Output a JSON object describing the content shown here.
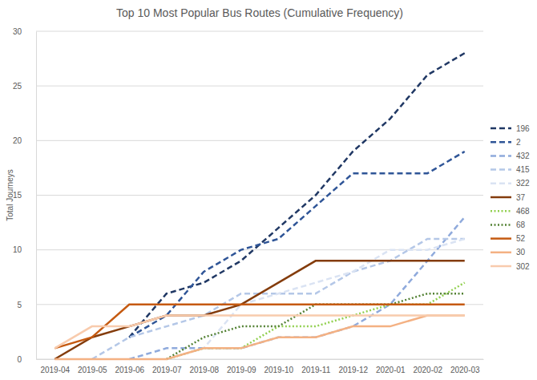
{
  "chart_data": {
    "type": "line",
    "title": "Top 10 Most Popular Bus Routes (Cumulative Frequency)",
    "y_label": "Total Journeys",
    "categories": [
      "2019-04",
      "2019-05",
      "2019-06",
      "2019-07",
      "2019-08",
      "2019-09",
      "2019-10",
      "2019-11",
      "2019-12",
      "2020-01",
      "2020-02",
      "2020-03"
    ],
    "ylim": [
      0,
      30
    ],
    "yticks": [
      0,
      5,
      10,
      15,
      20,
      25,
      30
    ],
    "grid": true,
    "legend": "right",
    "series": [
      {
        "name": "196",
        "color": "#203864",
        "line_style": "dashed",
        "values": [
          null,
          null,
          2,
          6,
          7,
          9,
          12,
          15,
          19,
          22,
          26,
          28
        ]
      },
      {
        "name": "2",
        "color": "#2f5597",
        "line_style": "dashed",
        "values": [
          null,
          null,
          2,
          4,
          8,
          10,
          11,
          14,
          17,
          17,
          17,
          19
        ]
      },
      {
        "name": "432",
        "color": "#8faadc",
        "line_style": "dashed",
        "values": [
          null,
          null,
          0,
          1,
          1,
          1,
          2,
          2,
          3,
          5,
          9,
          13
        ]
      },
      {
        "name": "415",
        "color": "#b4c7e7",
        "line_style": "dashed",
        "values": [
          null,
          0,
          2,
          3,
          4,
          6,
          6,
          6,
          8,
          9,
          11,
          11
        ]
      },
      {
        "name": "322",
        "color": "#dae3f3",
        "line_style": "dashed",
        "values": [
          null,
          null,
          null,
          0,
          1,
          5,
          6,
          7,
          8,
          10,
          10,
          11
        ]
      },
      {
        "name": "37",
        "color": "#843c0c",
        "line_style": "solid",
        "values": [
          0,
          2,
          3,
          4,
          4,
          5,
          7,
          9,
          9,
          9,
          9,
          9
        ]
      },
      {
        "name": "468",
        "color": "#92d050",
        "line_style": "dotted",
        "values": [
          null,
          null,
          null,
          0,
          1,
          1,
          3,
          3,
          4,
          5,
          5,
          7
        ]
      },
      {
        "name": "68",
        "color": "#548235",
        "line_style": "dotted",
        "values": [
          null,
          null,
          null,
          0,
          2,
          3,
          3,
          5,
          5,
          5,
          6,
          6
        ]
      },
      {
        "name": "52",
        "color": "#c55a11",
        "line_style": "solid",
        "values": [
          1,
          2,
          5,
          5,
          5,
          5,
          5,
          5,
          5,
          5,
          5,
          5
        ]
      },
      {
        "name": "30",
        "color": "#f4b183",
        "line_style": "solid",
        "values": [
          0,
          0,
          0,
          0,
          1,
          1,
          2,
          2,
          3,
          3,
          4,
          4
        ]
      },
      {
        "name": "302",
        "color": "#f8cbad",
        "line_style": "solid",
        "values": [
          1,
          3,
          3,
          4,
          4,
          4,
          4,
          4,
          4,
          4,
          4,
          4
        ]
      }
    ]
  }
}
